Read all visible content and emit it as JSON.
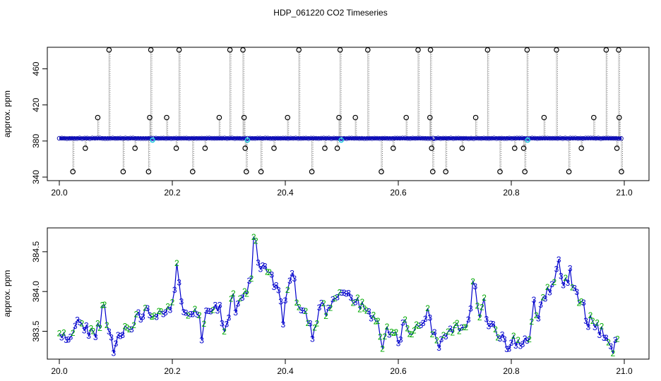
{
  "chart_data": [
    {
      "type": "scatter",
      "title": "HDP_061220  CO2 Timeseries",
      "xlabel": "",
      "ylabel": "approx. ppm",
      "xlim": [
        20.0,
        21.0
      ],
      "ylim": [
        340,
        480
      ],
      "x_ticks": [
        "20.0",
        "20.2",
        "20.4",
        "20.6",
        "20.8",
        "21.0"
      ],
      "y_ticks": [
        "340",
        "380",
        "420",
        "460"
      ],
      "baseline": {
        "x_start": 20.0,
        "x_end": 20.995,
        "y": 383,
        "step": 0.0045
      },
      "breaks": [
        {
          "x0": 20.163,
          "x1": 20.167,
          "y": 381
        },
        {
          "x0": 20.331,
          "x1": 20.335,
          "y": 381
        },
        {
          "x0": 20.497,
          "x1": 20.501,
          "y": 381
        },
        {
          "x0": 20.661,
          "x1": 20.665,
          "y": 381
        },
        {
          "x0": 20.828,
          "x1": 20.832,
          "y": 381
        }
      ],
      "cyan_points": [
        {
          "x": 20.165,
          "y": 381
        },
        {
          "x": 20.333,
          "y": 381
        },
        {
          "x": 20.499,
          "y": 381
        },
        {
          "x": 20.829,
          "y": 381
        }
      ],
      "outliers": [
        {
          "x": 20.024,
          "y": 346
        },
        {
          "x": 20.046,
          "y": 372
        },
        {
          "x": 20.068,
          "y": 406
        },
        {
          "x": 20.088,
          "y": 481
        },
        {
          "x": 20.113,
          "y": 346
        },
        {
          "x": 20.134,
          "y": 372
        },
        {
          "x": 20.158,
          "y": 346
        },
        {
          "x": 20.16,
          "y": 406
        },
        {
          "x": 20.162,
          "y": 481
        },
        {
          "x": 20.19,
          "y": 406
        },
        {
          "x": 20.207,
          "y": 372
        },
        {
          "x": 20.212,
          "y": 481
        },
        {
          "x": 20.236,
          "y": 346
        },
        {
          "x": 20.258,
          "y": 372
        },
        {
          "x": 20.283,
          "y": 406
        },
        {
          "x": 20.302,
          "y": 481
        },
        {
          "x": 20.325,
          "y": 481
        },
        {
          "x": 20.327,
          "y": 406
        },
        {
          "x": 20.329,
          "y": 372
        },
        {
          "x": 20.331,
          "y": 346
        },
        {
          "x": 20.357,
          "y": 346
        },
        {
          "x": 20.38,
          "y": 372
        },
        {
          "x": 20.404,
          "y": 406
        },
        {
          "x": 20.424,
          "y": 481
        },
        {
          "x": 20.447,
          "y": 346
        },
        {
          "x": 20.47,
          "y": 372
        },
        {
          "x": 20.492,
          "y": 372
        },
        {
          "x": 20.495,
          "y": 406
        },
        {
          "x": 20.497,
          "y": 481
        },
        {
          "x": 20.524,
          "y": 406
        },
        {
          "x": 20.546,
          "y": 481
        },
        {
          "x": 20.57,
          "y": 346
        },
        {
          "x": 20.591,
          "y": 372
        },
        {
          "x": 20.614,
          "y": 406
        },
        {
          "x": 20.635,
          "y": 481
        },
        {
          "x": 20.656,
          "y": 406
        },
        {
          "x": 20.657,
          "y": 481
        },
        {
          "x": 20.659,
          "y": 372
        },
        {
          "x": 20.661,
          "y": 346
        },
        {
          "x": 20.684,
          "y": 346
        },
        {
          "x": 20.713,
          "y": 372
        },
        {
          "x": 20.737,
          "y": 406
        },
        {
          "x": 20.758,
          "y": 481
        },
        {
          "x": 20.78,
          "y": 346
        },
        {
          "x": 20.806,
          "y": 372
        },
        {
          "x": 20.822,
          "y": 372
        },
        {
          "x": 20.824,
          "y": 346
        },
        {
          "x": 20.828,
          "y": 481
        },
        {
          "x": 20.858,
          "y": 406
        },
        {
          "x": 20.88,
          "y": 481
        },
        {
          "x": 20.902,
          "y": 346
        },
        {
          "x": 20.924,
          "y": 372
        },
        {
          "x": 20.946,
          "y": 406
        },
        {
          "x": 20.968,
          "y": 481
        },
        {
          "x": 20.987,
          "y": 372
        },
        {
          "x": 20.99,
          "y": 481
        },
        {
          "x": 20.991,
          "y": 406
        },
        {
          "x": 20.995,
          "y": 346
        }
      ]
    },
    {
      "type": "line",
      "title": "",
      "xlabel": "",
      "ylabel": "approx. ppm",
      "xlim": [
        20.0,
        21.0
      ],
      "ylim": [
        383.15,
        384.8
      ],
      "x_ticks": [
        "20.0",
        "20.2",
        "20.4",
        "20.6",
        "20.8",
        "21.0"
      ],
      "y_ticks": [
        "383.5",
        "384.0",
        "384.5"
      ],
      "point_step": 0.004,
      "point_marker_colors": {
        "2": "#00aa00",
        "3": "#0000cc"
      },
      "anchors": [
        [
          20.0,
          383.45
        ],
        [
          20.02,
          383.4
        ],
        [
          20.04,
          383.55
        ],
        [
          20.06,
          383.48
        ],
        [
          20.08,
          383.6
        ],
        [
          20.1,
          383.42
        ],
        [
          20.12,
          383.55
        ],
        [
          20.14,
          383.68
        ],
        [
          20.16,
          383.7
        ],
        [
          20.18,
          383.78
        ],
        [
          20.2,
          383.8
        ],
        [
          20.21,
          383.95
        ],
        [
          20.225,
          383.75
        ],
        [
          20.24,
          383.8
        ],
        [
          20.255,
          383.68
        ],
        [
          20.27,
          383.85
        ],
        [
          20.285,
          383.8
        ],
        [
          20.3,
          383.7
        ],
        [
          20.315,
          383.78
        ],
        [
          20.33,
          383.95
        ],
        [
          20.345,
          384.35
        ],
        [
          20.36,
          384.3
        ],
        [
          20.375,
          384.2
        ],
        [
          20.39,
          383.9
        ],
        [
          20.41,
          384.1
        ],
        [
          20.42,
          383.85
        ],
        [
          20.435,
          383.7
        ],
        [
          20.45,
          383.6
        ],
        [
          20.47,
          383.72
        ],
        [
          20.49,
          383.98
        ],
        [
          20.505,
          384.0
        ],
        [
          20.52,
          383.9
        ],
        [
          20.54,
          383.78
        ],
        [
          20.56,
          383.62
        ],
        [
          20.58,
          383.5
        ],
        [
          20.6,
          383.42
        ],
        [
          20.62,
          383.48
        ],
        [
          20.64,
          383.55
        ],
        [
          20.66,
          383.52
        ],
        [
          20.68,
          383.45
        ],
        [
          20.7,
          383.55
        ],
        [
          20.72,
          383.6
        ],
        [
          20.735,
          383.85
        ],
        [
          20.75,
          383.6
        ],
        [
          20.77,
          383.52
        ],
        [
          20.79,
          383.4
        ],
        [
          20.81,
          383.35
        ],
        [
          20.83,
          383.42
        ],
        [
          20.85,
          383.75
        ],
        [
          20.87,
          384.1
        ],
        [
          20.885,
          384.2
        ],
        [
          20.9,
          384.1
        ],
        [
          20.915,
          383.95
        ],
        [
          20.93,
          383.8
        ],
        [
          20.95,
          383.55
        ],
        [
          20.97,
          383.42
        ],
        [
          20.99,
          383.38
        ]
      ],
      "spikes": [
        {
          "x": 20.032,
          "dy": 0.22
        },
        {
          "x": 20.078,
          "dy": 0.28
        },
        {
          "x": 20.096,
          "dy": -0.25
        },
        {
          "x": 20.152,
          "dy": 0.18
        },
        {
          "x": 20.208,
          "dy": 0.38
        },
        {
          "x": 20.252,
          "dy": -0.3
        },
        {
          "x": 20.292,
          "dy": -0.32
        },
        {
          "x": 20.306,
          "dy": 0.25
        },
        {
          "x": 20.346,
          "dy": 0.42
        },
        {
          "x": 20.396,
          "dy": -0.3
        },
        {
          "x": 20.414,
          "dy": 0.32
        },
        {
          "x": 20.448,
          "dy": -0.22
        },
        {
          "x": 20.464,
          "dy": 0.25
        },
        {
          "x": 20.572,
          "dy": -0.22
        },
        {
          "x": 20.612,
          "dy": 0.25
        },
        {
          "x": 20.652,
          "dy": 0.25
        },
        {
          "x": 20.672,
          "dy": -0.18
        },
        {
          "x": 20.734,
          "dy": 0.45
        },
        {
          "x": 20.752,
          "dy": 0.28
        },
        {
          "x": 20.792,
          "dy": -0.15
        },
        {
          "x": 20.84,
          "dy": 0.3
        },
        {
          "x": 20.882,
          "dy": 0.25
        },
        {
          "x": 20.905,
          "dy": 0.2
        },
        {
          "x": 20.935,
          "dy": -0.15
        },
        {
          "x": 20.98,
          "dy": -0.2
        }
      ]
    }
  ]
}
